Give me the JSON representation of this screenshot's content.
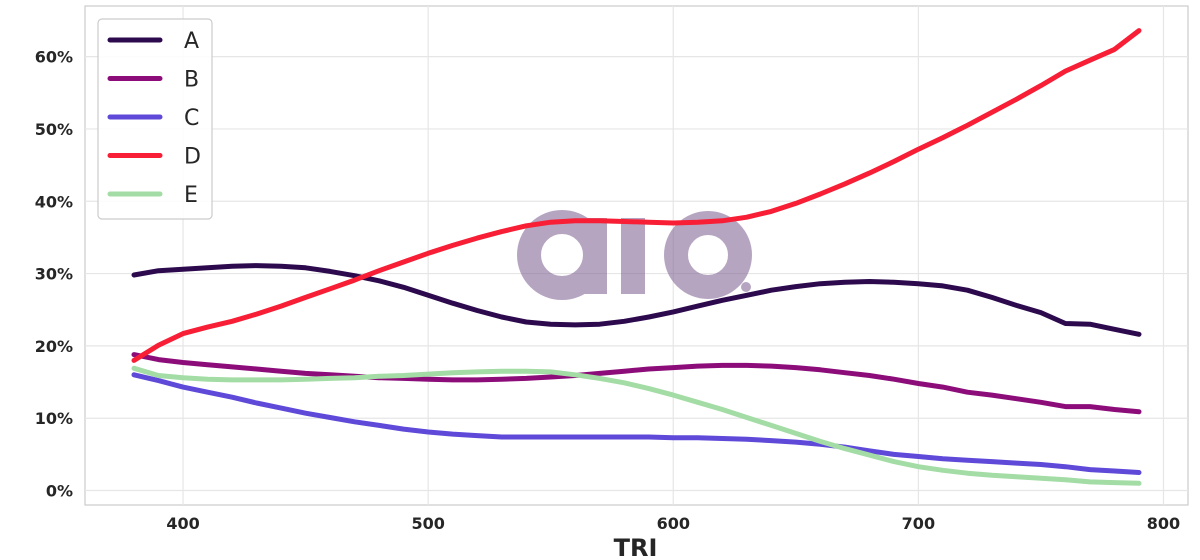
{
  "chart_data": {
    "type": "line",
    "title": "",
    "xlabel": "TRI",
    "ylabel": "",
    "xlim": [
      360,
      810
    ],
    "ylim": [
      -2,
      67
    ],
    "xticks": [
      400,
      500,
      600,
      700,
      800
    ],
    "yticks": [
      0,
      10,
      20,
      30,
      40,
      50,
      60
    ],
    "ytick_suffix": "%",
    "grid": true,
    "legend_position": "top-left",
    "x": [
      380,
      390,
      400,
      410,
      420,
      430,
      440,
      450,
      460,
      470,
      480,
      490,
      500,
      510,
      520,
      530,
      540,
      550,
      560,
      570,
      580,
      590,
      600,
      610,
      620,
      630,
      640,
      650,
      660,
      670,
      680,
      690,
      700,
      710,
      720,
      730,
      740,
      750,
      760,
      770,
      780,
      790
    ],
    "series": [
      {
        "name": "A",
        "color": "#2d0a4e",
        "values": [
          29.8,
          30.4,
          30.6,
          30.8,
          31.0,
          31.1,
          31.0,
          30.8,
          30.3,
          29.7,
          29.0,
          28.1,
          27.0,
          25.9,
          24.9,
          24.0,
          23.3,
          23.0,
          22.9,
          23.0,
          23.4,
          24.0,
          24.7,
          25.5,
          26.3,
          27.0,
          27.7,
          28.2,
          28.6,
          28.8,
          28.9,
          28.8,
          28.6,
          28.3,
          27.7,
          26.7,
          25.6,
          24.6,
          23.1,
          23.0,
          22.3,
          21.6
        ]
      },
      {
        "name": "B",
        "color": "#8c0d7a",
        "values": [
          18.8,
          18.1,
          17.7,
          17.4,
          17.1,
          16.8,
          16.5,
          16.2,
          16.0,
          15.8,
          15.6,
          15.5,
          15.4,
          15.3,
          15.3,
          15.4,
          15.5,
          15.7,
          15.9,
          16.2,
          16.5,
          16.8,
          17.0,
          17.2,
          17.3,
          17.3,
          17.2,
          17.0,
          16.7,
          16.3,
          15.9,
          15.4,
          14.8,
          14.3,
          13.6,
          13.2,
          12.7,
          12.2,
          11.6,
          11.6,
          11.2,
          10.9
        ]
      },
      {
        "name": "C",
        "color": "#5e49d9",
        "values": [
          16.0,
          15.2,
          14.3,
          13.6,
          12.9,
          12.1,
          11.4,
          10.7,
          10.1,
          9.5,
          9.0,
          8.5,
          8.1,
          7.8,
          7.6,
          7.4,
          7.4,
          7.4,
          7.4,
          7.4,
          7.4,
          7.4,
          7.3,
          7.3,
          7.2,
          7.1,
          6.9,
          6.7,
          6.4,
          6.0,
          5.5,
          5.0,
          4.7,
          4.4,
          4.2,
          4.0,
          3.8,
          3.6,
          3.3,
          2.9,
          2.7,
          2.5
        ]
      },
      {
        "name": "D",
        "color": "#f71e35",
        "values": [
          18.0,
          20.1,
          21.7,
          22.6,
          23.4,
          24.4,
          25.5,
          26.7,
          27.9,
          29.1,
          30.4,
          31.6,
          32.8,
          33.9,
          34.9,
          35.8,
          36.6,
          37.1,
          37.3,
          37.3,
          37.2,
          37.1,
          37.0,
          37.1,
          37.3,
          37.8,
          38.6,
          39.7,
          41.0,
          42.4,
          43.9,
          45.5,
          47.2,
          48.8,
          50.5,
          52.3,
          54.1,
          56.0,
          58.0,
          59.5,
          61.0,
          63.6
        ]
      },
      {
        "name": "E",
        "color": "#a3dca5",
        "values": [
          16.9,
          15.9,
          15.6,
          15.4,
          15.3,
          15.3,
          15.3,
          15.4,
          15.5,
          15.6,
          15.8,
          15.9,
          16.1,
          16.3,
          16.4,
          16.5,
          16.5,
          16.4,
          16.0,
          15.5,
          14.9,
          14.1,
          13.2,
          12.2,
          11.2,
          10.1,
          9.0,
          7.9,
          6.8,
          5.8,
          4.9,
          4.0,
          3.3,
          2.8,
          2.4,
          2.1,
          1.9,
          1.7,
          1.5,
          1.2,
          1.1,
          1.0
        ]
      }
    ]
  }
}
